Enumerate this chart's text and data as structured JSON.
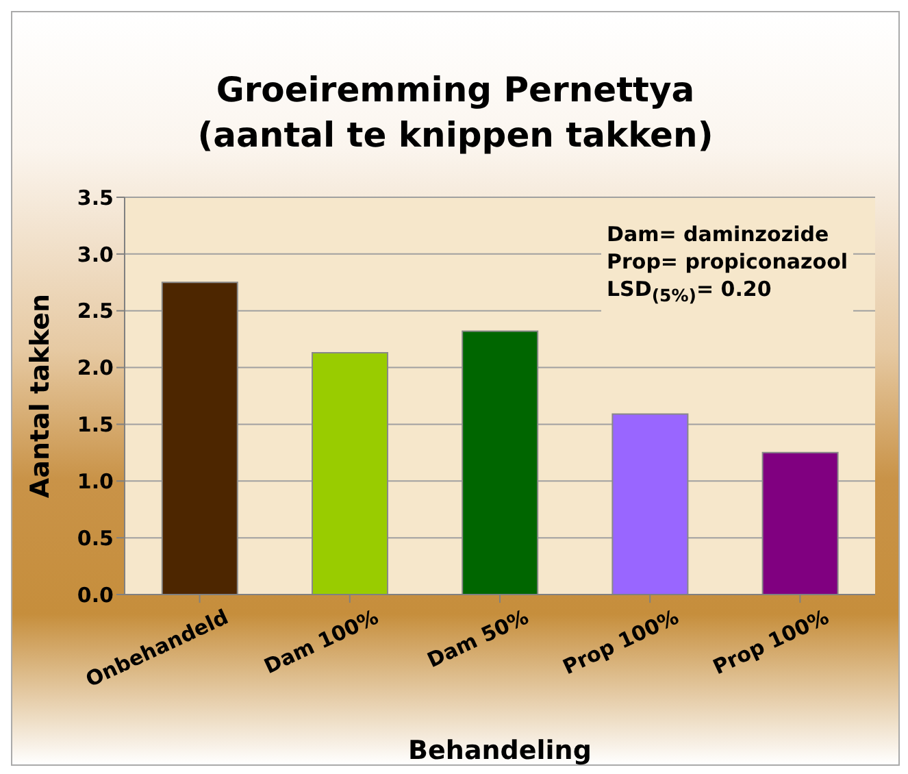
{
  "chart_data": {
    "type": "bar",
    "title": "Groeiremming Pernettya\n(aantal te knippen takken)",
    "xlabel": "Behandeling",
    "ylabel": "Aantal takken",
    "categories": [
      "Onbehandeld",
      "Dam 100%",
      "Dam 50%",
      "Prop 100%",
      "Prop 100%"
    ],
    "values": [
      2.75,
      2.13,
      2.32,
      1.59,
      1.25
    ],
    "colors": [
      "#4d2600",
      "#99cc00",
      "#006600",
      "#9966ff",
      "#800080"
    ],
    "ylim": [
      0,
      3.5
    ],
    "yticks": [
      {
        "value": 0,
        "label": "0.0"
      },
      {
        "value": 0.5,
        "label": "0.5"
      },
      {
        "value": 1,
        "label": "1.0"
      },
      {
        "value": 1.5,
        "label": "1.5"
      },
      {
        "value": 2,
        "label": "2.0"
      },
      {
        "value": 2.5,
        "label": "2.5"
      },
      {
        "value": 3,
        "label": "3.0"
      },
      {
        "value": 3.5,
        "label": "3.5"
      }
    ],
    "grid": "y",
    "annotations": [
      "Dam= daminzozide",
      "Prop= propiconazool",
      "LSD$_{(5%)}$= 0.20"
    ]
  }
}
